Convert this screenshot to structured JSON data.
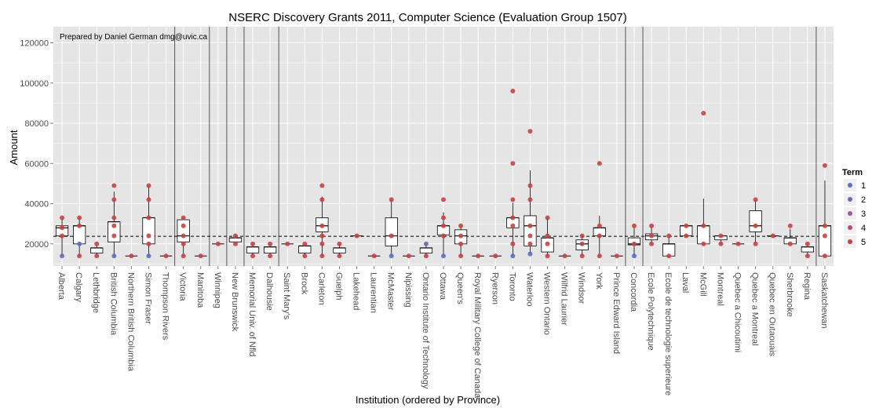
{
  "chart_data": {
    "type": "scatter",
    "title": "NSERC Discovery Grants 2011, Computer Science (Evaluation Group 1507)",
    "xlabel": "Institution (ordered by Province)",
    "ylabel": "Amount",
    "note": "Prepared by Daniel German dmg@uvic.ca",
    "ylim": [
      9000,
      128000
    ],
    "yticks": [
      20000,
      40000,
      60000,
      80000,
      100000,
      120000
    ],
    "reference_line": 23800,
    "legend": {
      "title": "Term",
      "position": "right",
      "items": [
        {
          "label": "1",
          "color": "#5a6fc4"
        },
        {
          "label": "2",
          "color": "#7b62b4"
        },
        {
          "label": "3",
          "color": "#9c5a99"
        },
        {
          "label": "4",
          "color": "#b54f70"
        },
        {
          "label": "5",
          "color": "#c8433f"
        }
      ]
    },
    "province_breaks_after": [
      6,
      8,
      9,
      10,
      12,
      32,
      33,
      43
    ],
    "categories": [
      "Alberta",
      "Calgary",
      "Lethbridge",
      "British Columbia",
      "Northern British Columbia",
      "Simon Fraser",
      "Thompson Rivers",
      "Victoria",
      "Manitoba",
      "Winnipeg",
      "New Brunswick",
      "Memorial Univ. of Nfld",
      "Dalhousie",
      "Saint Mary's",
      "Brock",
      "Carleton",
      "Guelph",
      "Lakehead",
      "Laurentian",
      "McMaster",
      "Nipissing",
      "Ontario Institute of Technology",
      "Ottawa",
      "Queen's",
      "Royal Military College of Canada",
      "Ryerson",
      "Toronto",
      "Waterloo",
      "Western Ontario",
      "Wilfrid Laurier",
      "Windsor",
      "York",
      "Prince Edward Island",
      "Concordia",
      "Ecole Polytechnique",
      "Ecole de technologie superieure",
      "Laval",
      "McGill",
      "Montreal",
      "Quebec a Chicoutimi",
      "Quebec a Montreal",
      "Quebec en Outaouais",
      "Sherbrooke",
      "Regina",
      "Saskatchewan"
    ],
    "boxes": [
      [
        24000,
        29000
      ],
      [
        20000,
        29000
      ],
      [
        15500,
        18000
      ],
      [
        21000,
        31000
      ],
      null,
      [
        20000,
        33000
      ],
      null,
      [
        21000,
        32000
      ],
      null,
      null,
      [
        21000,
        23000
      ],
      [
        15500,
        18500
      ],
      [
        15500,
        18500
      ],
      null,
      [
        15500,
        19000
      ],
      [
        26000,
        33000
      ],
      [
        15500,
        18000
      ],
      null,
      null,
      [
        19000,
        33000
      ],
      null,
      [
        15500,
        18000
      ],
      [
        24500,
        29000
      ],
      [
        20000,
        27000
      ],
      null,
      null,
      [
        28000,
        33000
      ],
      [
        19000,
        34000
      ],
      [
        16000,
        23000
      ],
      null,
      [
        17000,
        22000
      ],
      [
        24000,
        28000
      ],
      null,
      [
        19500,
        23000
      ],
      [
        22000,
        25000
      ],
      [
        14000,
        20000
      ],
      [
        24000,
        29000
      ],
      [
        20000,
        29000
      ],
      [
        22000,
        24000
      ],
      null,
      [
        26000,
        36500
      ],
      null,
      [
        20000,
        23000
      ],
      [
        16000,
        18500
      ],
      [
        14000,
        29000
      ]
    ],
    "points": [
      {
        "x": "Alberta",
        "y": 33000,
        "term": 5
      },
      {
        "x": "Alberta",
        "y": 28000,
        "term": 5
      },
      {
        "x": "Alberta",
        "y": 24000,
        "term": 5
      },
      {
        "x": "Alberta",
        "y": 14000,
        "term": 1
      },
      {
        "x": "Calgary",
        "y": 33000,
        "term": 5
      },
      {
        "x": "Calgary",
        "y": 29000,
        "term": 5
      },
      {
        "x": "Calgary",
        "y": 20000,
        "term": 1
      },
      {
        "x": "Calgary",
        "y": 14000,
        "term": 5
      },
      {
        "x": "Lethbridge",
        "y": 20000,
        "term": 5
      },
      {
        "x": "Lethbridge",
        "y": 14000,
        "term": 5
      },
      {
        "x": "British Columbia",
        "y": 49000,
        "term": 5
      },
      {
        "x": "British Columbia",
        "y": 42000,
        "term": 5
      },
      {
        "x": "British Columbia",
        "y": 33000,
        "term": 5
      },
      {
        "x": "British Columbia",
        "y": 29000,
        "term": 5
      },
      {
        "x": "British Columbia",
        "y": 24000,
        "term": 5
      },
      {
        "x": "British Columbia",
        "y": 14000,
        "term": 1
      },
      {
        "x": "Northern British Columbia",
        "y": 14000,
        "term": 5
      },
      {
        "x": "Simon Fraser",
        "y": 49000,
        "term": 5
      },
      {
        "x": "Simon Fraser",
        "y": 42000,
        "term": 5
      },
      {
        "x": "Simon Fraser",
        "y": 33000,
        "term": 5
      },
      {
        "x": "Simon Fraser",
        "y": 24000,
        "term": 5
      },
      {
        "x": "Simon Fraser",
        "y": 20000,
        "term": 5
      },
      {
        "x": "Simon Fraser",
        "y": 14000,
        "term": 1
      },
      {
        "x": "Thompson Rivers",
        "y": 14000,
        "term": 5
      },
      {
        "x": "Victoria",
        "y": 33000,
        "term": 5
      },
      {
        "x": "Victoria",
        "y": 29000,
        "term": 5
      },
      {
        "x": "Victoria",
        "y": 24000,
        "term": 5
      },
      {
        "x": "Victoria",
        "y": 20000,
        "term": 5
      },
      {
        "x": "Victoria",
        "y": 14000,
        "term": 5
      },
      {
        "x": "Manitoba",
        "y": 14000,
        "term": 5
      },
      {
        "x": "Winnipeg",
        "y": 20000,
        "term": 5
      },
      {
        "x": "New Brunswick",
        "y": 24000,
        "term": 5
      },
      {
        "x": "New Brunswick",
        "y": 20000,
        "term": 5
      },
      {
        "x": "Memorial Univ. of Nfld",
        "y": 20000,
        "term": 5
      },
      {
        "x": "Memorial Univ. of Nfld",
        "y": 14000,
        "term": 5
      },
      {
        "x": "Dalhousie",
        "y": 20000,
        "term": 5
      },
      {
        "x": "Dalhousie",
        "y": 14000,
        "term": 5
      },
      {
        "x": "Saint Mary's",
        "y": 20000,
        "term": 5
      },
      {
        "x": "Brock",
        "y": 20000,
        "term": 5
      },
      {
        "x": "Brock",
        "y": 14000,
        "term": 5
      },
      {
        "x": "Carleton",
        "y": 49000,
        "term": 5
      },
      {
        "x": "Carleton",
        "y": 42000,
        "term": 5
      },
      {
        "x": "Carleton",
        "y": 29000,
        "term": 5
      },
      {
        "x": "Carleton",
        "y": 24000,
        "term": 5
      },
      {
        "x": "Carleton",
        "y": 20000,
        "term": 5
      },
      {
        "x": "Carleton",
        "y": 14000,
        "term": 5
      },
      {
        "x": "Guelph",
        "y": 20000,
        "term": 5
      },
      {
        "x": "Guelph",
        "y": 14000,
        "term": 5
      },
      {
        "x": "Lakehead",
        "y": 24000,
        "term": 5
      },
      {
        "x": "Laurentian",
        "y": 14000,
        "term": 5
      },
      {
        "x": "McMaster",
        "y": 42000,
        "term": 5
      },
      {
        "x": "McMaster",
        "y": 24000,
        "term": 5
      },
      {
        "x": "McMaster",
        "y": 14000,
        "term": 1
      },
      {
        "x": "Nipissing",
        "y": 14000,
        "term": 5
      },
      {
        "x": "Ontario Institute of Technology",
        "y": 20000,
        "term": 2
      },
      {
        "x": "Ontario Institute of Technology",
        "y": 14000,
        "term": 5
      },
      {
        "x": "Ottawa",
        "y": 42000,
        "term": 5
      },
      {
        "x": "Ottawa",
        "y": 33000,
        "term": 5
      },
      {
        "x": "Ottawa",
        "y": 29000,
        "term": 5
      },
      {
        "x": "Ottawa",
        "y": 24000,
        "term": 5
      },
      {
        "x": "Ottawa",
        "y": 14000,
        "term": 1
      },
      {
        "x": "Queen's",
        "y": 29000,
        "term": 5
      },
      {
        "x": "Queen's",
        "y": 24000,
        "term": 5
      },
      {
        "x": "Queen's",
        "y": 20000,
        "term": 5
      },
      {
        "x": "Queen's",
        "y": 14000,
        "term": 5
      },
      {
        "x": "Royal Military College of Canada",
        "y": 14000,
        "term": 5
      },
      {
        "x": "Ryerson",
        "y": 14000,
        "term": 5
      },
      {
        "x": "Toronto",
        "y": 96000,
        "term": 5
      },
      {
        "x": "Toronto",
        "y": 60000,
        "term": 5
      },
      {
        "x": "Toronto",
        "y": 42000,
        "term": 5
      },
      {
        "x": "Toronto",
        "y": 33000,
        "term": 5
      },
      {
        "x": "Toronto",
        "y": 29000,
        "term": 5
      },
      {
        "x": "Toronto",
        "y": 20000,
        "term": 5
      },
      {
        "x": "Toronto",
        "y": 14000,
        "term": 1
      },
      {
        "x": "Waterloo",
        "y": 76000,
        "term": 5
      },
      {
        "x": "Waterloo",
        "y": 49000,
        "term": 5
      },
      {
        "x": "Waterloo",
        "y": 42000,
        "term": 5
      },
      {
        "x": "Waterloo",
        "y": 29000,
        "term": 5
      },
      {
        "x": "Waterloo",
        "y": 24000,
        "term": 5
      },
      {
        "x": "Waterloo",
        "y": 20000,
        "term": 5
      },
      {
        "x": "Waterloo",
        "y": 15000,
        "term": 1
      },
      {
        "x": "Western Ontario",
        "y": 33000,
        "term": 5
      },
      {
        "x": "Western Ontario",
        "y": 24000,
        "term": 5
      },
      {
        "x": "Western Ontario",
        "y": 20000,
        "term": 5
      },
      {
        "x": "Western Ontario",
        "y": 14000,
        "term": 5
      },
      {
        "x": "Wilfrid Laurier",
        "y": 14000,
        "term": 5
      },
      {
        "x": "Windsor",
        "y": 24000,
        "term": 5
      },
      {
        "x": "Windsor",
        "y": 20000,
        "term": 5
      },
      {
        "x": "Windsor",
        "y": 14000,
        "term": 5
      },
      {
        "x": "York",
        "y": 60000,
        "term": 5
      },
      {
        "x": "York",
        "y": 29000,
        "term": 5
      },
      {
        "x": "York",
        "y": 24000,
        "term": 5
      },
      {
        "x": "York",
        "y": 14000,
        "term": 5
      },
      {
        "x": "Prince Edward Island",
        "y": 14000,
        "term": 5
      },
      {
        "x": "Concordia",
        "y": 29000,
        "term": 5
      },
      {
        "x": "Concordia",
        "y": 20000,
        "term": 5
      },
      {
        "x": "Concordia",
        "y": 14000,
        "term": 1
      },
      {
        "x": "Ecole Polytechnique",
        "y": 29000,
        "term": 5
      },
      {
        "x": "Ecole Polytechnique",
        "y": 24000,
        "term": 5
      },
      {
        "x": "Ecole Polytechnique",
        "y": 20000,
        "term": 5
      },
      {
        "x": "Ecole de technologie superieure",
        "y": 24000,
        "term": 5
      },
      {
        "x": "Ecole de technologie superieure",
        "y": 14000,
        "term": 5
      },
      {
        "x": "Laval",
        "y": 29000,
        "term": 5
      },
      {
        "x": "Laval",
        "y": 24000,
        "term": 5
      },
      {
        "x": "McGill",
        "y": 85000,
        "term": 5
      },
      {
        "x": "McGill",
        "y": 29000,
        "term": 5
      },
      {
        "x": "McGill",
        "y": 20000,
        "term": 5
      },
      {
        "x": "Montreal",
        "y": 24000,
        "term": 5
      },
      {
        "x": "Montreal",
        "y": 20000,
        "term": 5
      },
      {
        "x": "Quebec a Chicoutimi",
        "y": 20000,
        "term": 5
      },
      {
        "x": "Quebec a Montreal",
        "y": 42000,
        "term": 5
      },
      {
        "x": "Quebec a Montreal",
        "y": 29000,
        "term": 5
      },
      {
        "x": "Quebec a Montreal",
        "y": 20000,
        "term": 5
      },
      {
        "x": "Quebec en Outaouais",
        "y": 24000,
        "term": 5
      },
      {
        "x": "Sherbrooke",
        "y": 29000,
        "term": 5
      },
      {
        "x": "Sherbrooke",
        "y": 20000,
        "term": 5
      },
      {
        "x": "Regina",
        "y": 20000,
        "term": 5
      },
      {
        "x": "Regina",
        "y": 14000,
        "term": 5
      },
      {
        "x": "Saskatchewan",
        "y": 59000,
        "term": 5
      },
      {
        "x": "Saskatchewan",
        "y": 29000,
        "term": 5
      },
      {
        "x": "Saskatchewan",
        "y": 24000,
        "term": 5
      },
      {
        "x": "Saskatchewan",
        "y": 14000,
        "term": 5
      }
    ]
  }
}
